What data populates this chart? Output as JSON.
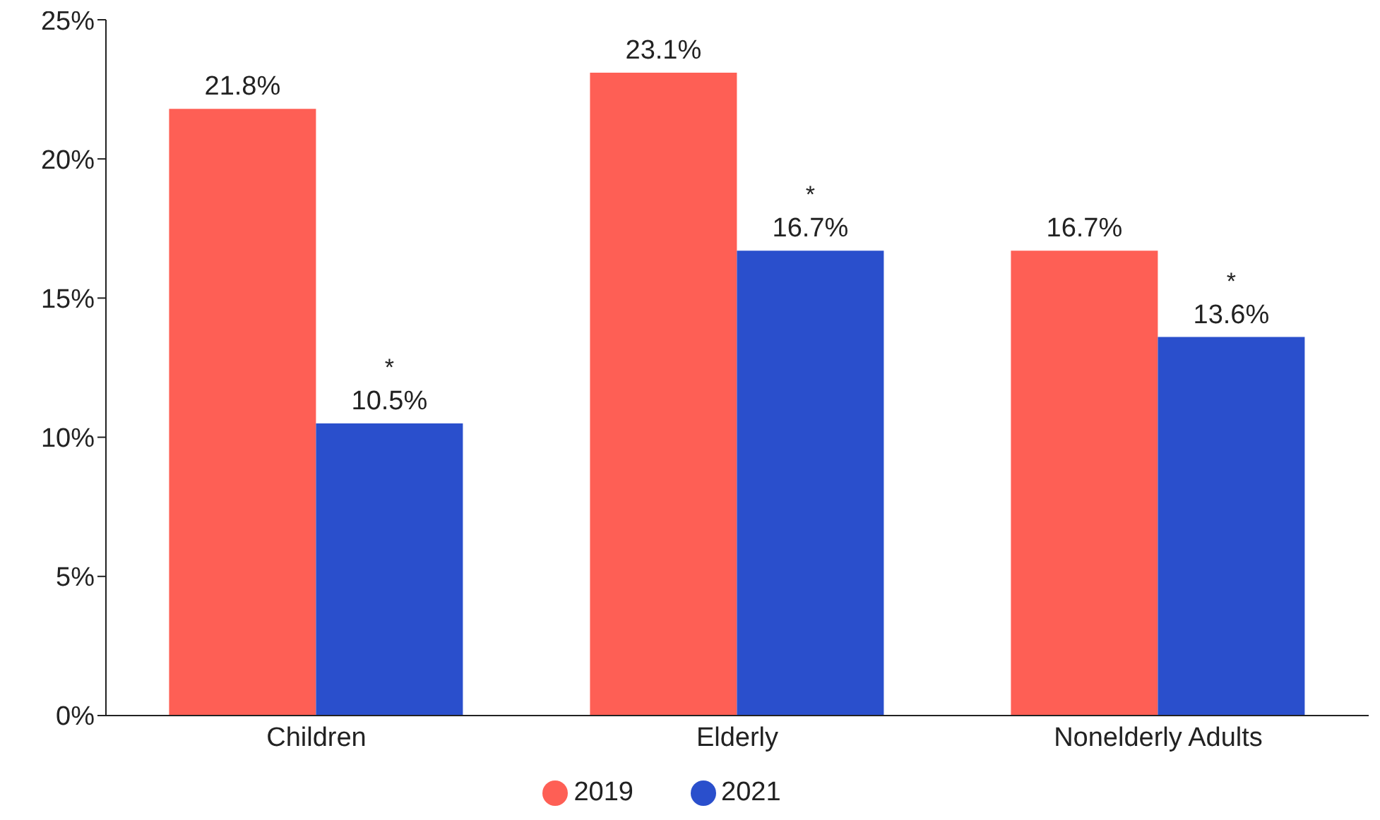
{
  "chart_data": {
    "type": "bar",
    "categories": [
      "Children",
      "Elderly",
      "Nonelderly Adults"
    ],
    "series": [
      {
        "name": "2019",
        "color": "#fe5f55",
        "values": [
          21.8,
          23.1,
          16.7
        ],
        "value_labels": [
          "21.8%",
          "23.1%",
          "16.7%"
        ]
      },
      {
        "name": "2021",
        "color": "#2a4fcc",
        "values": [
          10.5,
          16.7,
          13.6
        ],
        "value_labels": [
          "10.5%",
          "16.7%",
          "13.6%"
        ]
      }
    ],
    "ylim": [
      0,
      25
    ],
    "yticks": [
      {
        "value": 0,
        "label": "0%"
      },
      {
        "value": 5,
        "label": "5%"
      },
      {
        "value": 10,
        "label": "10%"
      },
      {
        "value": 15,
        "label": "15%"
      },
      {
        "value": 20,
        "label": "20%"
      },
      {
        "value": 25,
        "label": "25%"
      }
    ],
    "annotations": [
      "*",
      "*",
      "*"
    ],
    "grid": false,
    "legend": "bottom"
  }
}
